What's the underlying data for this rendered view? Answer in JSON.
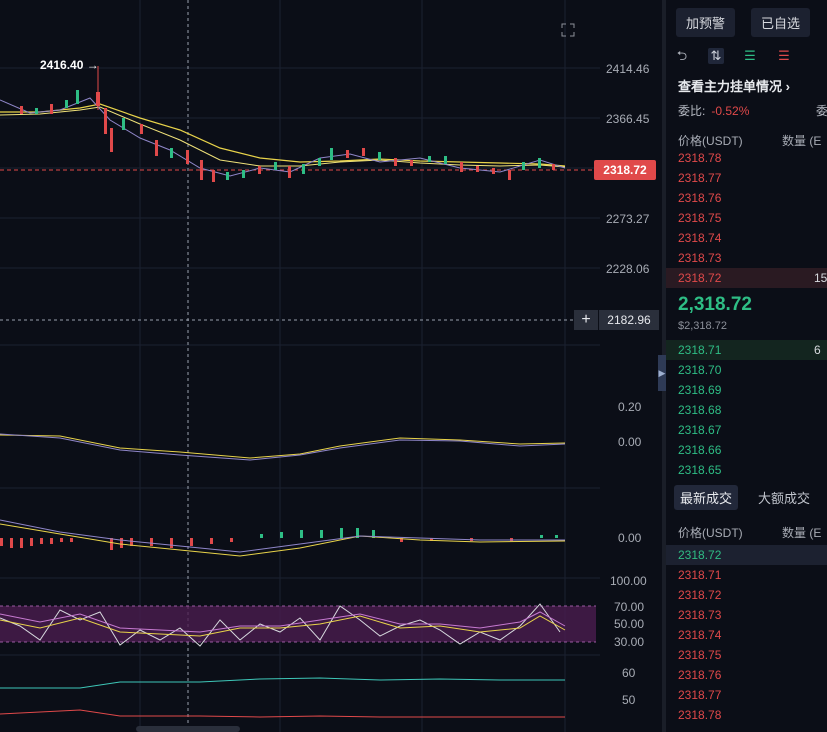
{
  "chart": {
    "high_label": "2416.40 →",
    "price_axis": [
      "2414.46",
      "2366.45",
      "2273.27",
      "2228.06"
    ],
    "last_price_tag": "2318.72",
    "crosshair_price": "2182.96",
    "indicator1_axis": [
      "0.20",
      "0.00"
    ],
    "indicator2_axis": [
      "0.00"
    ],
    "rsi_axis": [
      "100.00",
      "70.00",
      "50.00",
      "30.00"
    ],
    "indicator4_axis": [
      "60",
      "50"
    ],
    "plus_label": "+"
  },
  "sidebar": {
    "alert_button": "加预警",
    "watchlist_button": "已自选",
    "icons": [
      "orderbook-both-icon",
      "orderbook-split-icon",
      "orderbook-bids-icon",
      "orderbook-asks-icon"
    ],
    "section_title": "查看主力挂单情况 ›",
    "ratio_label": "委比:",
    "ratio_value": "-0.52%",
    "ratio_trunc": "委",
    "orderbook_header": {
      "price": "价格(USDT)",
      "qty": "数量 (E"
    },
    "asks": [
      "2318.78",
      "2318.77",
      "2318.76",
      "2318.75",
      "2318.74",
      "2318.73",
      "2318.72"
    ],
    "asks_hl_qty": "15",
    "mid_price": "2,318.72",
    "mid_sub": "$2,318.72",
    "bids": [
      "2318.71",
      "2318.70",
      "2318.69",
      "2318.68",
      "2318.67",
      "2318.66",
      "2318.65"
    ],
    "bids_hl_qty": "6",
    "tabs": [
      "最新成交",
      "大额成交"
    ],
    "trades_header": {
      "price": "价格(USDT)",
      "qty": "数量 (E"
    },
    "trades": [
      {
        "price": "2318.72",
        "side": "bid"
      },
      {
        "price": "2318.71",
        "side": "ask"
      },
      {
        "price": "2318.72",
        "side": "ask"
      },
      {
        "price": "2318.73",
        "side": "ask"
      },
      {
        "price": "2318.74",
        "side": "ask"
      },
      {
        "price": "2318.75",
        "side": "ask"
      },
      {
        "price": "2318.76",
        "side": "ask"
      },
      {
        "price": "2318.77",
        "side": "ask"
      },
      {
        "price": "2318.78",
        "side": "ask"
      }
    ]
  },
  "colors": {
    "up": "#2ebd85",
    "down": "#e0494a",
    "ma_yellow": "#e8d34a",
    "ma_purple": "#8f86c9",
    "rsi_band": "#4a1d4f"
  }
}
